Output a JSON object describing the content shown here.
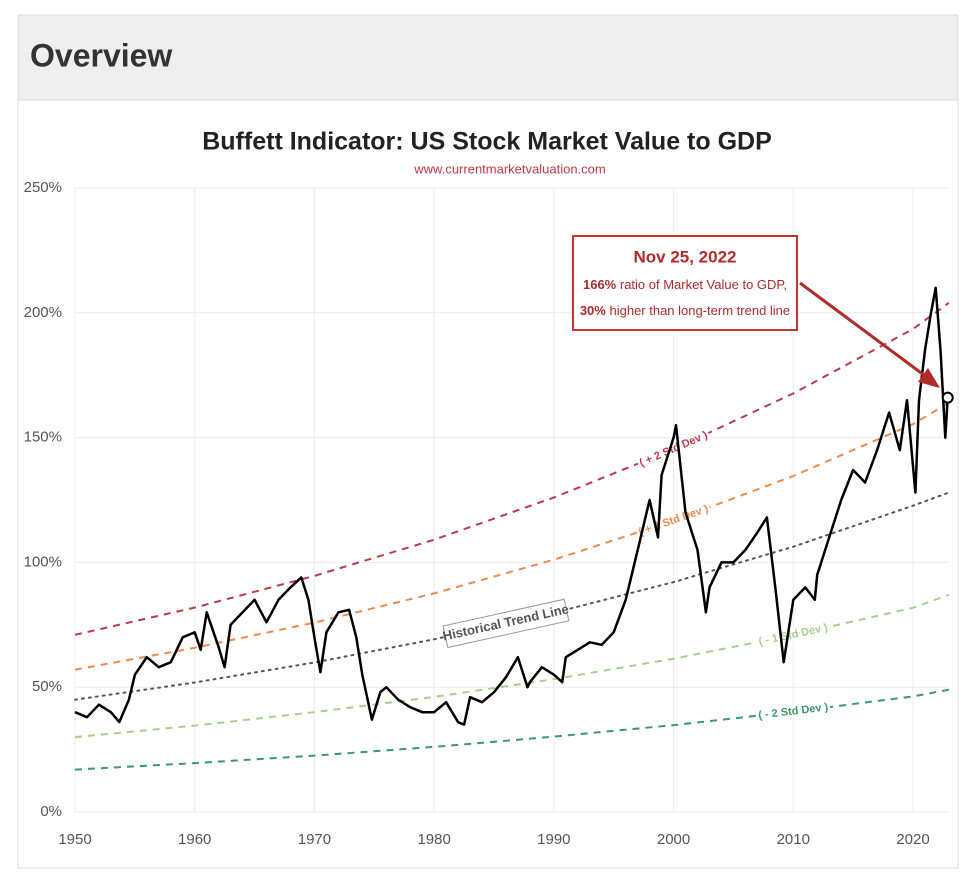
{
  "header": {
    "title": "Overview"
  },
  "chart_data": {
    "type": "line",
    "title": "Buffett Indicator: US Stock Market Value to GDP",
    "subtitle": "www.currentmarketvaluation.com",
    "xlim": [
      1950,
      2023
    ],
    "xticks": [
      1950,
      1960,
      1970,
      1980,
      1990,
      2000,
      2010,
      2020
    ],
    "ylim": [
      0,
      250
    ],
    "yticks": [
      {
        "value": 0,
        "label": "0%"
      },
      {
        "value": 50,
        "label": "50%"
      },
      {
        "value": 100,
        "label": "100%"
      },
      {
        "value": 150,
        "label": "150%"
      },
      {
        "value": 200,
        "label": "200%"
      },
      {
        "value": 250,
        "label": "250%"
      }
    ],
    "grid": true,
    "series": [
      {
        "color": "#000000",
        "x": [
          1950,
          1951,
          1952,
          1953,
          1953.7,
          1954.5,
          1955,
          1956,
          1957,
          1958,
          1959,
          1960,
          1960.5,
          1961,
          1962,
          1962.5,
          1963,
          1964,
          1965,
          1966,
          1967,
          1968,
          1968.9,
          1969.5,
          1970,
          1970.5,
          1971,
          1972,
          1972.9,
          1973.5,
          1974,
          1974.8,
          1975.5,
          1976,
          1977,
          1978,
          1979,
          1980,
          1981,
          1982,
          1982.5,
          1983,
          1984,
          1985,
          1986,
          1987,
          1987.8,
          1988,
          1989,
          1990,
          1990.7,
          1991,
          1992,
          1993,
          1994,
          1995,
          1996,
          1997,
          1998,
          1998.7,
          1999,
          2000,
          2000.2,
          2001,
          2002,
          2002.7,
          2003,
          2004,
          2005,
          2006,
          2007,
          2007.8,
          2008.5,
          2009.2,
          2010,
          2011,
          2011.8,
          2012,
          2013,
          2014,
          2015,
          2016,
          2017,
          2018,
          2018.9,
          2019.5,
          2020.2,
          2020.5,
          2021,
          2021.5,
          2021.9,
          2022.3,
          2022.7,
          2022.9
        ],
        "values": [
          40,
          38,
          43,
          40,
          36,
          45,
          55,
          62,
          58,
          60,
          70,
          72,
          65,
          80,
          66,
          58,
          75,
          80,
          85,
          76,
          85,
          90,
          94,
          85,
          70,
          56,
          72,
          80,
          81,
          70,
          55,
          37,
          48,
          50,
          45,
          42,
          40,
          40,
          44,
          36,
          35,
          46,
          44,
          48,
          54,
          62,
          50,
          52,
          58,
          55,
          52,
          62,
          65,
          68,
          67,
          72,
          85,
          105,
          125,
          110,
          135,
          150,
          155,
          120,
          105,
          80,
          90,
          100,
          100,
          105,
          112,
          118,
          90,
          60,
          85,
          90,
          85,
          95,
          110,
          125,
          137,
          132,
          145,
          160,
          145,
          165,
          128,
          165,
          185,
          200,
          210,
          185,
          150,
          166
        ]
      },
      {
        "name": "( + 2 Std Dev )",
        "color": "#c0394b",
        "x": [
          1950,
          1960,
          1970,
          1980,
          1990,
          2000,
          2010,
          2020,
          2023
        ],
        "values": [
          71,
          81.9,
          94.6,
          109.1,
          126,
          145.3,
          167.7,
          193.5,
          204
        ]
      },
      {
        "name": "( + 1 Std Dev )",
        "color": "#f08a4b",
        "x": [
          1950,
          1960,
          1970,
          1980,
          1990,
          2000,
          2010,
          2020,
          2023
        ],
        "values": [
          57,
          65.8,
          75.9,
          87.6,
          101.1,
          116.7,
          134.6,
          155.4,
          164
        ]
      },
      {
        "name": "Historical Trend Line",
        "color": "#555555",
        "x": [
          1950,
          1960,
          1970,
          1980,
          1990,
          2000,
          2010,
          2020,
          2023
        ],
        "values": [
          45,
          51.9,
          59.9,
          69.2,
          79.8,
          92.1,
          106.3,
          122.7,
          128
        ]
      },
      {
        "name": "( - 1 Std Dev )",
        "color": "#a8d08d",
        "x": [
          1950,
          1960,
          1970,
          1980,
          1990,
          2000,
          2010,
          2020,
          2023
        ],
        "values": [
          30,
          34.6,
          40,
          46.1,
          53.2,
          61.4,
          70.9,
          81.8,
          87
        ]
      },
      {
        "name": "( - 2 Std Dev )",
        "color": "#3a9a6a",
        "x": [
          1950,
          1960,
          1970,
          1980,
          1990,
          2000,
          2010,
          2020,
          2023
        ],
        "values": [
          17,
          19.6,
          22.6,
          26.1,
          30.2,
          34.8,
          40.2,
          46.3,
          49
        ]
      }
    ],
    "annotation": {
      "date": "Nov 25, 2022",
      "ratio": "166%",
      "ratio_text": "ratio of Market Value to GDP,",
      "gap": "30%",
      "gap_text": "higher than long-term trend line"
    }
  }
}
